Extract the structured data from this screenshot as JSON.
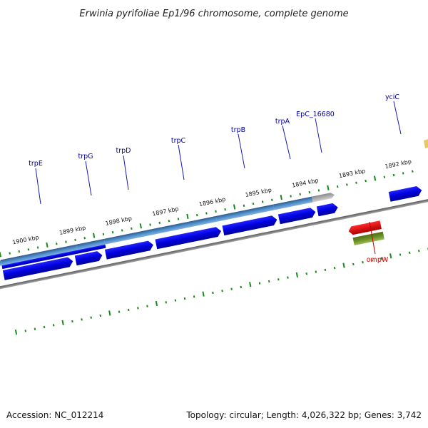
{
  "title": "Erwinia pyrifoliae Ep1/96 chromosome, complete genome",
  "footer": {
    "accession": "Accession: NC_012214",
    "summary": "Topology: circular; Length: 4,026,322 bp; Genes: 3,742"
  },
  "colors": {
    "backbone": "#7a7a7a",
    "forward_cds": "#0000e0",
    "reverse_cds": "#e00000",
    "operon_blue": "#4a86c0",
    "operon_grey": "#a8a8a8",
    "green_feature": "#5e7f1e",
    "tick_green": "#1a8a1a",
    "label_blue": "#00009a",
    "label_red": "#d00000"
  },
  "kbp_labels": [
    "1900 kbp",
    "1899 kbp",
    "1898 kbp",
    "1897 kbp",
    "1896 kbp",
    "1895 kbp",
    "1894 kbp",
    "1893 kbp",
    "1892 kbp"
  ],
  "gene_labels": [
    {
      "name": "trpE",
      "strand": "forward"
    },
    {
      "name": "trpG",
      "strand": "forward"
    },
    {
      "name": "trpD",
      "strand": "forward"
    },
    {
      "name": "trpC",
      "strand": "forward"
    },
    {
      "name": "trpB",
      "strand": "forward"
    },
    {
      "name": "trpA",
      "strand": "forward"
    },
    {
      "name": "EpC_16680",
      "strand": "forward"
    },
    {
      "name": "yciC",
      "strand": "forward"
    },
    {
      "name": "ompW",
      "strand": "reverse"
    }
  ]
}
